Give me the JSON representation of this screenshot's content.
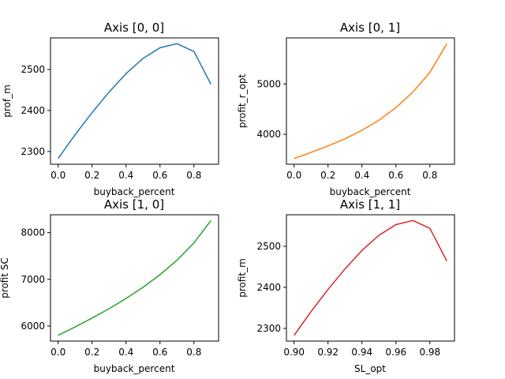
{
  "chart_data": [
    {
      "type": "line",
      "title": "Axis [0, 0]",
      "xlabel": "buyback_percent",
      "ylabel": "prof_m",
      "color": "#1f77b4",
      "x": [
        0.0,
        0.1,
        0.2,
        0.3,
        0.4,
        0.5,
        0.6,
        0.7,
        0.8,
        0.9
      ],
      "y": [
        2283,
        2341,
        2395,
        2445,
        2490,
        2527,
        2553,
        2563,
        2544,
        2464
      ],
      "xlim": [
        -0.045,
        0.945
      ],
      "ylim": [
        2269,
        2577
      ],
      "xticks": [
        0.0,
        0.2,
        0.4,
        0.6,
        0.8
      ],
      "xtick_labels": [
        "0.0",
        "0.2",
        "0.4",
        "0.6",
        "0.8"
      ],
      "yticks": [
        2300,
        2400,
        2500
      ],
      "ytick_labels": [
        "2300",
        "2400",
        "2500"
      ]
    },
    {
      "type": "line",
      "title": "Axis [0, 1]",
      "xlabel": "buyback_percent",
      "ylabel": "profit_r_opt",
      "color": "#ff7f0e",
      "x": [
        0.0,
        0.1,
        0.2,
        0.3,
        0.4,
        0.5,
        0.6,
        0.7,
        0.8,
        0.9
      ],
      "y": [
        3520,
        3640,
        3770,
        3910,
        4080,
        4280,
        4530,
        4840,
        5230,
        5800
      ],
      "xlim": [
        -0.045,
        0.945
      ],
      "ylim": [
        3406,
        5914
      ],
      "xticks": [
        0.0,
        0.2,
        0.4,
        0.6,
        0.8
      ],
      "xtick_labels": [
        "0.0",
        "0.2",
        "0.4",
        "0.6",
        "0.8"
      ],
      "yticks": [
        4000,
        5000
      ],
      "ytick_labels": [
        "4000",
        "5000"
      ]
    },
    {
      "type": "line",
      "title": "Axis [1, 0]",
      "xlabel": "buyback_percent",
      "ylabel": "profit SC",
      "color": "#2ca02c",
      "x": [
        0.0,
        0.1,
        0.2,
        0.3,
        0.4,
        0.5,
        0.6,
        0.7,
        0.8,
        0.9
      ],
      "y": [
        5800,
        5980,
        6170,
        6370,
        6590,
        6830,
        7100,
        7410,
        7780,
        8260
      ],
      "xlim": [
        -0.045,
        0.945
      ],
      "ylim": [
        5677,
        8383
      ],
      "xticks": [
        0.0,
        0.2,
        0.4,
        0.6,
        0.8
      ],
      "xtick_labels": [
        "0.0",
        "0.2",
        "0.4",
        "0.6",
        "0.8"
      ],
      "yticks": [
        6000,
        7000,
        8000
      ],
      "ytick_labels": [
        "6000",
        "7000",
        "8000"
      ]
    },
    {
      "type": "line",
      "title": "Axis [1, 1]",
      "xlabel": "SL_opt",
      "ylabel": "profit_m",
      "color": "#d62728",
      "x": [
        0.9,
        0.91,
        0.92,
        0.93,
        0.94,
        0.95,
        0.96,
        0.97,
        0.98,
        0.99
      ],
      "y": [
        2283,
        2341,
        2395,
        2445,
        2490,
        2527,
        2553,
        2563,
        2544,
        2464
      ],
      "xlim": [
        0.8955,
        0.9945
      ],
      "ylim": [
        2269,
        2577
      ],
      "xticks": [
        0.9,
        0.92,
        0.94,
        0.96,
        0.98
      ],
      "xtick_labels": [
        "0.90",
        "0.92",
        "0.94",
        "0.96",
        "0.98"
      ],
      "yticks": [
        2300,
        2400,
        2500
      ],
      "ytick_labels": [
        "2300",
        "2400",
        "2500"
      ]
    }
  ]
}
